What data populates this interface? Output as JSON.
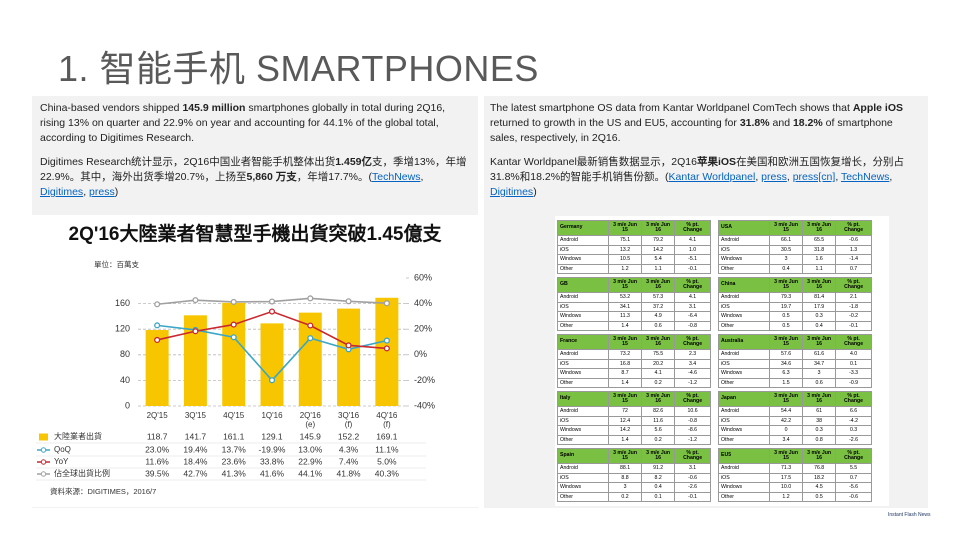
{
  "title": "1. 智能手机 SMARTPHONES",
  "left": {
    "paragraphs": [
      [
        {
          "text": "China-based vendors shipped "
        },
        {
          "text": "145.9 million",
          "style": "bold"
        },
        {
          "text": " smartphones globally in total during 2Q16, rising 13% on quarter and 22.9% on year and accounting for 44.1% of the global total, according to Digitimes Research."
        }
      ],
      [
        {
          "text": "Digitimes Research统计显示，2Q16中国业者智能手机整体出货"
        },
        {
          "text": "1.459亿",
          "style": "bold"
        },
        {
          "text": "支，季增13%，年增22.9%。其中，海外出货季增20.7%，上扬至"
        },
        {
          "text": "5,860 万支",
          "style": "bold"
        },
        {
          "text": "，年增17.7%。("
        },
        {
          "text": "TechNews",
          "style": "link"
        },
        {
          "text": ", "
        },
        {
          "text": "Digitimes",
          "style": "link"
        },
        {
          "text": ", "
        },
        {
          "text": "press",
          "style": "link"
        },
        {
          "text": ")"
        }
      ]
    ]
  },
  "right": {
    "paragraphs": [
      [
        {
          "text": "The latest smartphone OS data from Kantar Worldpanel ComTech shows that "
        },
        {
          "text": "Apple iOS",
          "style": "bold"
        },
        {
          "text": " returned to growth in the US and EU5, accounting for "
        },
        {
          "text": "31.8%",
          "style": "bold"
        },
        {
          "text": " and "
        },
        {
          "text": "18.2%",
          "style": "bold"
        },
        {
          "text": " of smartphone sales, respectively, in 2Q16."
        }
      ],
      [
        {
          "text": "Kantar Worldpanel最新销售数据显示，2Q16"
        },
        {
          "text": "苹果iOS",
          "style": "bold"
        },
        {
          "text": "在美国和欧洲五国恢复增长，分别占31.8%和18.2%的智能手机销售份额。("
        },
        {
          "text": "Kantar Worldpanel",
          "style": "link"
        },
        {
          "text": ", "
        },
        {
          "text": "press",
          "style": "link"
        },
        {
          "text": ", "
        },
        {
          "text": "press[cn]",
          "style": "link"
        },
        {
          "text": ", "
        },
        {
          "text": "TechNews",
          "style": "link"
        },
        {
          "text": ", "
        },
        {
          "text": "Digitimes",
          "style": "link"
        },
        {
          "text": ")"
        }
      ]
    ],
    "tables": [
      {
        "header": [
          "Germany",
          "3 m/e Jun 15",
          "3 m/e Jun 16",
          "% pt. Change"
        ],
        "rows": [
          [
            "Android",
            "75.1",
            "79.2",
            "4.1"
          ],
          [
            "iOS",
            "13.2",
            "14.2",
            "1.0"
          ],
          [
            "Windows",
            "10.5",
            "5.4",
            "-5.1"
          ],
          [
            "Other",
            "1.2",
            "1.1",
            "-0.1"
          ]
        ]
      },
      {
        "header": [
          "USA",
          "3 m/e Jun 15",
          "3 m/e Jun 16",
          "% pt. Change"
        ],
        "rows": [
          [
            "Android",
            "66.1",
            "65.5",
            "-0.6"
          ],
          [
            "iOS",
            "30.5",
            "31.8",
            "1.3"
          ],
          [
            "Windows",
            "3",
            "1.6",
            "-1.4"
          ],
          [
            "Other",
            "0.4",
            "1.1",
            "0.7"
          ]
        ]
      },
      {
        "header": [
          "GB",
          "3 m/e Jun 15",
          "3 m/e Jun 16",
          "% pt. Change"
        ],
        "rows": [
          [
            "Android",
            "53.2",
            "57.3",
            "4.1"
          ],
          [
            "iOS",
            "34.1",
            "37.2",
            "3.1"
          ],
          [
            "Windows",
            "11.3",
            "4.9",
            "-6.4"
          ],
          [
            "Other",
            "1.4",
            "0.6",
            "-0.8"
          ]
        ]
      },
      {
        "header": [
          "China",
          "3 m/e Jun 15",
          "3 m/e Jun 16",
          "% pt. Change"
        ],
        "rows": [
          [
            "Android",
            "79.3",
            "81.4",
            "2.1"
          ],
          [
            "iOS",
            "19.7",
            "17.9",
            "-1.8"
          ],
          [
            "Windows",
            "0.5",
            "0.3",
            "-0.2"
          ],
          [
            "Other",
            "0.5",
            "0.4",
            "-0.1"
          ]
        ]
      },
      {
        "header": [
          "France",
          "3 m/e Jun 15",
          "3 m/e Jun 16",
          "% pt. Change"
        ],
        "rows": [
          [
            "Android",
            "73.2",
            "75.5",
            "2.3"
          ],
          [
            "iOS",
            "16.8",
            "20.2",
            "3.4"
          ],
          [
            "Windows",
            "8.7",
            "4.1",
            "-4.6"
          ],
          [
            "Other",
            "1.4",
            "0.2",
            "-1.2"
          ]
        ]
      },
      {
        "header": [
          "Australia",
          "3 m/e Jun 15",
          "3 m/e Jun 16",
          "% pt. Change"
        ],
        "rows": [
          [
            "Android",
            "57.6",
            "61.6",
            "4.0"
          ],
          [
            "iOS",
            "34.6",
            "34.7",
            "0.1"
          ],
          [
            "Windows",
            "6.3",
            "3",
            "-3.3"
          ],
          [
            "Other",
            "1.5",
            "0.6",
            "-0.9"
          ]
        ]
      },
      {
        "header": [
          "Italy",
          "3 m/e Jun 15",
          "3 m/e Jun 16",
          "% pt. Change"
        ],
        "rows": [
          [
            "Android",
            "72",
            "82.6",
            "10.6"
          ],
          [
            "iOS",
            "12.4",
            "11.6",
            "-0.8"
          ],
          [
            "Windows",
            "14.2",
            "5.6",
            "-8.6"
          ],
          [
            "Other",
            "1.4",
            "0.2",
            "-1.2"
          ]
        ]
      },
      {
        "header": [
          "Japan",
          "3 m/e Jun 15",
          "3 m/e Jun 16",
          "% pt. Change"
        ],
        "rows": [
          [
            "Android",
            "54.4",
            "61",
            "6.6"
          ],
          [
            "iOS",
            "42.2",
            "38",
            "-4.2"
          ],
          [
            "Windows",
            "0",
            "0.3",
            "0.3"
          ],
          [
            "Other",
            "3.4",
            "0.8",
            "-2.6"
          ]
        ]
      },
      {
        "header": [
          "Spain",
          "3 m/e Jun 15",
          "3 m/e Jun 16",
          "% pt. Change"
        ],
        "rows": [
          [
            "Android",
            "88.1",
            "91.2",
            "3.1"
          ],
          [
            "iOS",
            "8.8",
            "8.2",
            "-0.6"
          ],
          [
            "Windows",
            "3",
            "0.4",
            "-2.6"
          ],
          [
            "Other",
            "0.2",
            "0.1",
            "-0.1"
          ]
        ]
      },
      {
        "header": [
          "EU5",
          "3 m/e Jun 15",
          "3 m/e Jun 16",
          "% pt. Change"
        ],
        "rows": [
          [
            "Android",
            "71.3",
            "76.8",
            "5.5"
          ],
          [
            "iOS",
            "17.5",
            "18.2",
            "0.7"
          ],
          [
            "Windows",
            "10.0",
            "4.5",
            "-5.6"
          ],
          [
            "Other",
            "1.2",
            "0.5",
            "-0.6"
          ]
        ]
      }
    ]
  },
  "chart_data": {
    "type": "bar_line",
    "title": "2Q'16大陸業者智慧型手機出貨突破1.45億支",
    "unit": "單位：百萬支",
    "source": "資料來源：DIGITIMES，2016/7",
    "categories": [
      "2Q'15",
      "3Q'15",
      "4Q'15",
      "1Q'16",
      "2Q'16\n(e)",
      "3Q'16\n(f)",
      "4Q'16\n(f)"
    ],
    "ylim": [
      0,
      200
    ],
    "yticks": [
      0,
      40,
      80,
      120,
      160
    ],
    "y2lim": [
      -40,
      60
    ],
    "y2ticks": [
      {
        "value": -40,
        "label": "-40%"
      },
      {
        "value": -20,
        "label": "-20%"
      },
      {
        "value": 0,
        "label": "0%"
      },
      {
        "value": 20,
        "label": "20%"
      },
      {
        "value": 40,
        "label": "40%"
      },
      {
        "value": 60,
        "label": "60%"
      }
    ],
    "grid": true,
    "series": [
      {
        "name": "大陸業者出貨",
        "type": "bar",
        "color": "#f7c600",
        "values": [
          118.7,
          141.7,
          161.1,
          129.1,
          145.9,
          152.2,
          169.1
        ]
      },
      {
        "name": "QoQ",
        "type": "line",
        "axis": "y2",
        "color": "#3aa6c8",
        "values": [
          23.0,
          19.4,
          13.7,
          -19.9,
          13.0,
          4.3,
          11.1
        ],
        "value_labels": [
          "23.0%",
          "19.4%",
          "13.7%",
          "-19.9%",
          "13.0%",
          "4.3%",
          "11.1%"
        ]
      },
      {
        "name": "YoY",
        "type": "line",
        "axis": "y2",
        "color": "#c8282e",
        "values": [
          11.6,
          18.4,
          23.6,
          33.8,
          22.9,
          7.4,
          5.0
        ],
        "value_labels": [
          "11.6%",
          "18.4%",
          "23.6%",
          "33.8%",
          "22.9%",
          "7.4%",
          "5.0%"
        ]
      },
      {
        "name": "佔全球出貨比例",
        "type": "line",
        "axis": "y2",
        "color": "#a0a0a0",
        "values": [
          39.5,
          42.7,
          41.3,
          41.6,
          44.1,
          41.8,
          40.3
        ],
        "value_labels": [
          "39.5%",
          "42.7%",
          "41.3%",
          "41.6%",
          "44.1%",
          "41.8%",
          "40.3%"
        ]
      }
    ]
  },
  "logo": "Instant Flash News"
}
